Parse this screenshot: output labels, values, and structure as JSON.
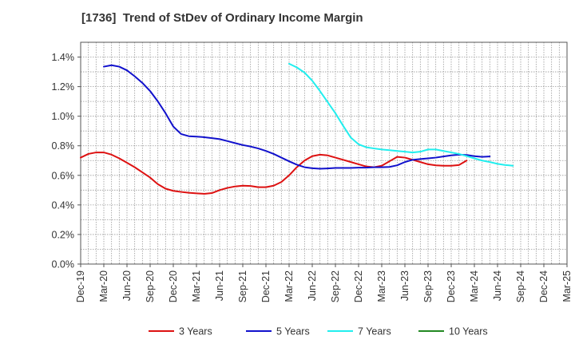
{
  "chart_data": {
    "type": "line",
    "title": "[1736]  Trend of StDev of Ordinary Income Margin",
    "xlabel": "",
    "ylabel": "",
    "ylim": [
      0,
      1.5
    ],
    "yticks": [
      0,
      0.2,
      0.4,
      0.6,
      0.8,
      1.0,
      1.2,
      1.4
    ],
    "ytick_labels": [
      "0.0%",
      "0.2%",
      "0.4%",
      "0.6%",
      "0.8%",
      "1.0%",
      "1.2%",
      "1.4%"
    ],
    "xticks": [
      "Dec-19",
      "Mar-20",
      "Jun-20",
      "Sep-20",
      "Dec-20",
      "Mar-21",
      "Jun-21",
      "Sep-21",
      "Dec-21",
      "Mar-22",
      "Jun-22",
      "Sep-22",
      "Dec-22",
      "Mar-23",
      "Jun-23",
      "Sep-23",
      "Dec-23",
      "Mar-24",
      "Jun-24",
      "Sep-24",
      "Dec-24",
      "Mar-25"
    ],
    "grid": true,
    "legend_position": "bottom",
    "series": [
      {
        "name": "3 Years",
        "color": "#dd1111",
        "start": "Dec-19",
        "values": [
          0.72,
          0.745,
          0.755,
          0.755,
          0.74,
          0.715,
          0.685,
          0.655,
          0.62,
          0.585,
          0.54,
          0.51,
          0.495,
          0.488,
          0.482,
          0.478,
          0.475,
          0.48,
          0.5,
          0.515,
          0.525,
          0.53,
          0.528,
          0.52,
          0.52,
          0.53,
          0.555,
          0.6,
          0.655,
          0.7,
          0.73,
          0.74,
          0.735,
          0.72,
          0.705,
          0.69,
          0.675,
          0.66,
          0.655,
          0.665,
          0.695,
          0.725,
          0.72,
          0.705,
          0.69,
          0.675,
          0.668,
          0.665,
          0.665,
          0.67,
          0.7
        ]
      },
      {
        "name": "5 Years",
        "color": "#1111cc",
        "start": "Mar-20",
        "values": [
          1.335,
          1.345,
          1.335,
          1.31,
          1.27,
          1.225,
          1.17,
          1.1,
          1.02,
          0.93,
          0.88,
          0.865,
          0.862,
          0.858,
          0.852,
          0.845,
          0.832,
          0.818,
          0.805,
          0.795,
          0.782,
          0.765,
          0.745,
          0.72,
          0.695,
          0.672,
          0.655,
          0.648,
          0.645,
          0.647,
          0.65,
          0.65,
          0.65,
          0.652,
          0.652,
          0.655,
          0.655,
          0.657,
          0.668,
          0.69,
          0.705,
          0.71,
          0.715,
          0.72,
          0.728,
          0.735,
          0.74,
          0.738,
          0.73,
          0.725,
          0.728
        ]
      },
      {
        "name": "7 Years",
        "color": "#22eeee",
        "start": "Mar-22",
        "values": [
          1.355,
          1.33,
          1.295,
          1.24,
          1.17,
          1.095,
          1.02,
          0.935,
          0.855,
          0.81,
          0.79,
          0.782,
          0.775,
          0.77,
          0.765,
          0.76,
          0.755,
          0.76,
          0.775,
          0.775,
          0.765,
          0.755,
          0.745,
          0.73,
          0.715,
          0.7,
          0.69,
          0.678,
          0.67,
          0.665
        ]
      },
      {
        "name": "10 Years",
        "color": "#228822",
        "start": "Dec-24",
        "values": []
      }
    ]
  }
}
